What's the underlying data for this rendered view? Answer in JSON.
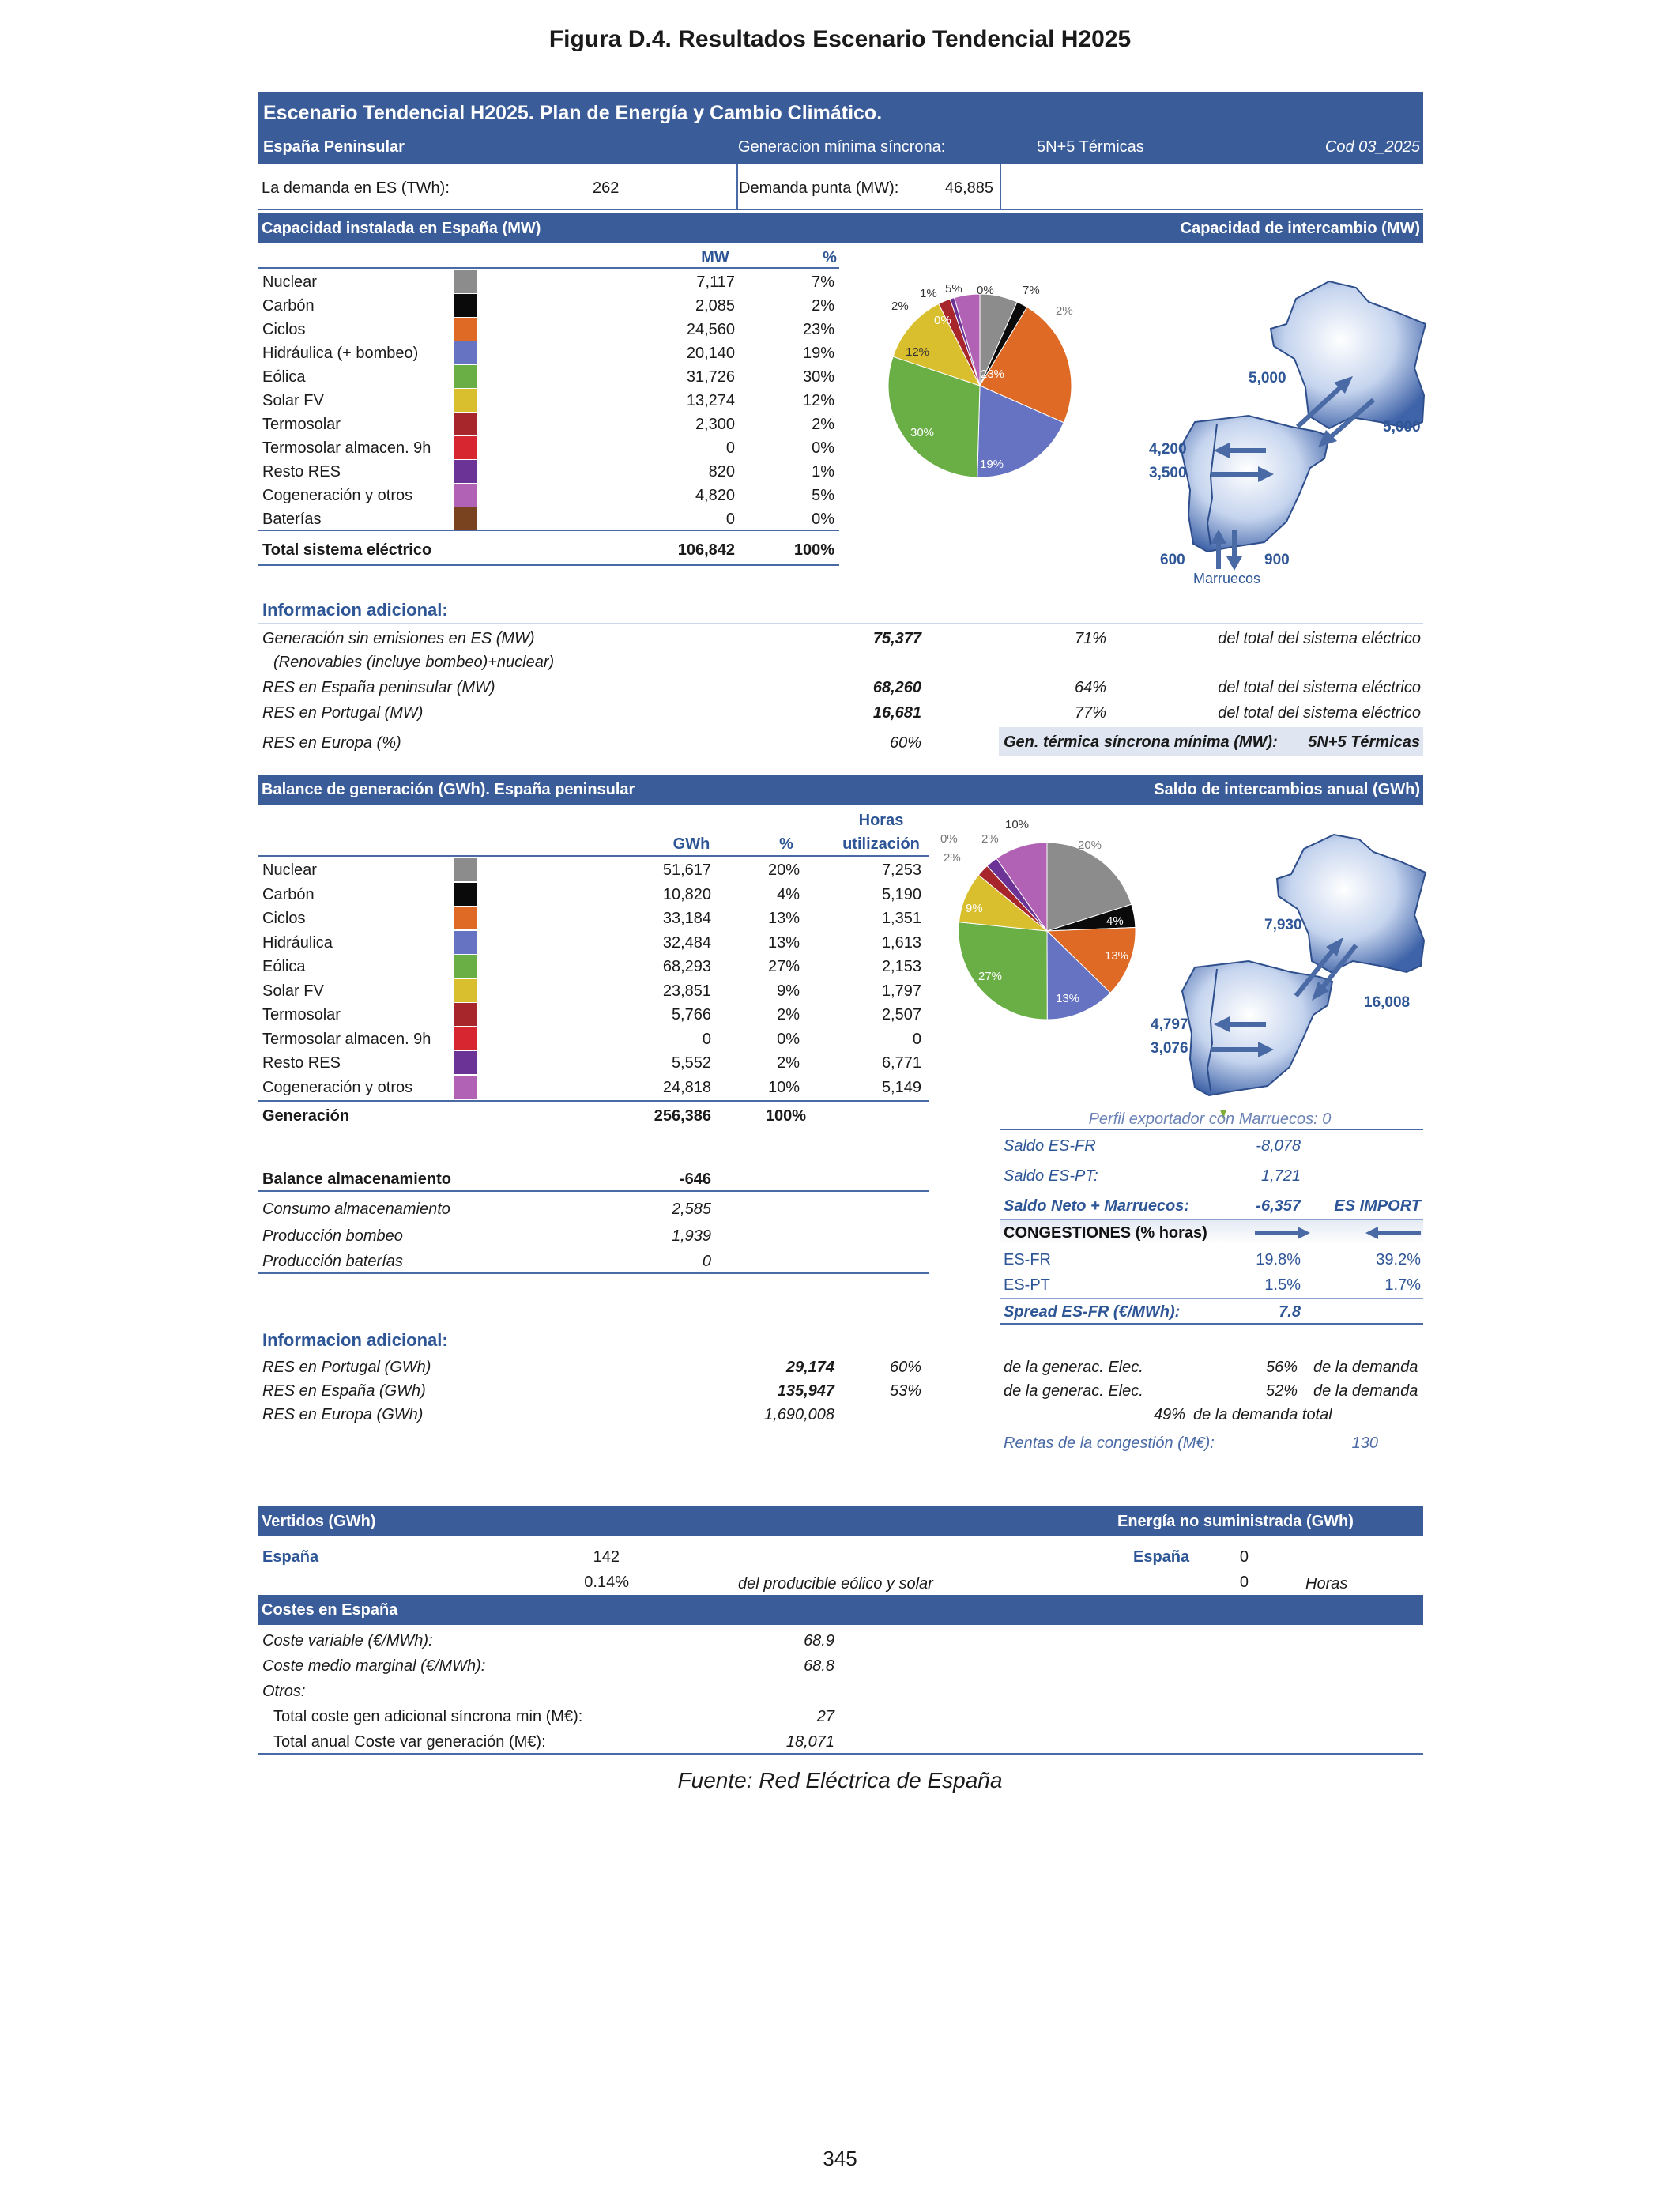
{
  "figure_title": "Figura D.4. Resultados Escenario Tendencial H2025",
  "header": {
    "title": "Escenario Tendencial H2025. Plan de Energía y Cambio Climático.",
    "region": "España Peninsular",
    "gen_min_label": "Generacion mínima síncrona:",
    "gen_min_value": "5N+5 Térmicas",
    "code": "Cod 03_2025",
    "demand_label": "La demanda en ES (TWh):",
    "demand_value": "262",
    "peak_label": "Demanda punta (MW):",
    "peak_value": "46,885"
  },
  "capacity": {
    "title": "Capacidad instalada en España (MW)",
    "exchange_title": "Capacidad de intercambio (MW)",
    "col_mw": "MW",
    "col_pct": "%",
    "rows": [
      {
        "name": "Nuclear",
        "mw": "7,117",
        "pct": "7%",
        "color": "#8c8c8c"
      },
      {
        "name": "Carbón",
        "mw": "2,085",
        "pct": "2%",
        "color": "#0a0a0a"
      },
      {
        "name": "Ciclos",
        "mw": "24,560",
        "pct": "23%",
        "color": "#de6a26"
      },
      {
        "name": "Hidráulica (+ bombeo)",
        "mw": "20,140",
        "pct": "19%",
        "color": "#6673c2"
      },
      {
        "name": "Eólica",
        "mw": "31,726",
        "pct": "30%",
        "color": "#6aaf46"
      },
      {
        "name": "Solar FV",
        "mw": "13,274",
        "pct": "12%",
        "color": "#d9bf2e"
      },
      {
        "name": "Termosolar",
        "mw": "2,300",
        "pct": "2%",
        "color": "#a7262b"
      },
      {
        "name": "Termosolar almacen. 9h",
        "mw": "0",
        "pct": "0%",
        "color": "#d7262f"
      },
      {
        "name": "Resto RES",
        "mw": "820",
        "pct": "1%",
        "color": "#6b3395"
      },
      {
        "name": "Cogeneración y otros",
        "mw": "4,820",
        "pct": "5%",
        "color": "#b262b5"
      },
      {
        "name": "Baterías",
        "mw": "0",
        "pct": "0%",
        "color": "#7a4320"
      }
    ],
    "total_label": "Total sistema eléctrico",
    "total_mw": "106,842",
    "total_pct": "100%",
    "pie_labels": [
      "7%",
      "2%",
      "23%",
      "19%",
      "30%",
      "12%",
      "2%",
      "0%",
      "1%",
      "5%",
      "0%"
    ],
    "exchange": {
      "fr_left": "5,000",
      "fr_right": "5,000",
      "pt_top": "4,200",
      "pt_bottom": "3,500",
      "ma_left": "600",
      "ma_right": "900",
      "ma_label": "Marruecos"
    }
  },
  "info1": {
    "title": "Informacion adicional:",
    "rows": [
      {
        "label": "Generación sin emisiones en ES (MW)",
        "value": "75,377",
        "pct": "71%",
        "note": "del total del sistema eléctrico"
      },
      {
        "label": "(Renovables (incluye bombeo)+nuclear)",
        "value": "",
        "pct": "",
        "note": ""
      },
      {
        "label": "RES en España peninsular (MW)",
        "value": "68,260",
        "pct": "64%",
        "note": "del total del sistema eléctrico"
      },
      {
        "label": "RES en Portugal (MW)",
        "value": "16,681",
        "pct": "77%",
        "note": "del total del sistema eléctrico"
      },
      {
        "label": "RES en Europa (%)",
        "value": "",
        "pct": "60%",
        "note": ""
      }
    ],
    "gen_term_label": "Gen. térmica síncrona mínima (MW):",
    "gen_term_value": "5N+5 Térmicas"
  },
  "balance": {
    "title": "Balance de generación (GWh). España peninsular",
    "exchange_title": "Saldo de intercambios anual  (GWh)",
    "col_gwh": "GWh",
    "col_pct": "%",
    "col_hours_1": "Horas",
    "col_hours_2": "utilización",
    "rows": [
      {
        "name": "Nuclear",
        "gwh": "51,617",
        "pct": "20%",
        "hours": "7,253",
        "color": "#8c8c8c"
      },
      {
        "name": "Carbón",
        "gwh": "10,820",
        "pct": "4%",
        "hours": "5,190",
        "color": "#0a0a0a"
      },
      {
        "name": "Ciclos",
        "gwh": "33,184",
        "pct": "13%",
        "hours": "1,351",
        "color": "#de6a26"
      },
      {
        "name": "Hidráulica",
        "gwh": "32,484",
        "pct": "13%",
        "hours": "1,613",
        "color": "#6673c2"
      },
      {
        "name": "Eólica",
        "gwh": "68,293",
        "pct": "27%",
        "hours": "2,153",
        "color": "#6aaf46"
      },
      {
        "name": "Solar FV",
        "gwh": "23,851",
        "pct": "9%",
        "hours": "1,797",
        "color": "#d9bf2e"
      },
      {
        "name": "Termosolar",
        "gwh": "5,766",
        "pct": "2%",
        "hours": "2,507",
        "color": "#a7262b"
      },
      {
        "name": "Termosolar almacen. 9h",
        "gwh": "0",
        "pct": "0%",
        "hours": "0",
        "color": "#d7262f"
      },
      {
        "name": "Resto RES",
        "gwh": "5,552",
        "pct": "2%",
        "hours": "6,771",
        "color": "#6b3395"
      },
      {
        "name": "Cogeneración y otros",
        "gwh": "24,818",
        "pct": "10%",
        "hours": "5,149",
        "color": "#b262b5"
      }
    ],
    "gen_label": "Generación",
    "gen_gwh": "256,386",
    "gen_pct": "100%",
    "pie_labels": [
      "20%",
      "4%",
      "13%",
      "13%",
      "27%",
      "9%",
      "2%",
      "0%",
      "2%",
      "10%"
    ],
    "exchange": {
      "fr_left": "7,930",
      "fr_right": "16,008",
      "pt_top": "4,797",
      "pt_bottom": "3,076"
    },
    "morocco_profile": "Perfil exportador con Marruecos:  0",
    "saldo_fr_label": "Saldo ES-FR",
    "saldo_fr_value": "-8,078",
    "saldo_pt_label": "Saldo ES-PT:",
    "saldo_pt_value": "1,721",
    "saldo_neto_label": "Saldo Neto + Marruecos:",
    "saldo_neto_value": "-6,357",
    "saldo_neto_note": "ES IMPORT",
    "cong_label": "CONGESTIONES (% horas)",
    "cong_rows": [
      {
        "name": "ES-FR",
        "a": "19.8%",
        "b": "39.2%"
      },
      {
        "name": "ES-PT",
        "a": "1.5%",
        "b": "1.7%"
      }
    ],
    "spread_label": "Spread ES-FR (€/MWh):",
    "spread_value": "7.8",
    "storage_label": "Balance almacenamiento",
    "storage_value": "-646",
    "storage_rows": [
      {
        "label": "Consumo almacenamiento",
        "value": "2,585"
      },
      {
        "label": "Producción bombeo",
        "value": "1,939"
      },
      {
        "label": "Producción baterías",
        "value": "0"
      }
    ]
  },
  "info2": {
    "title": "Informacion adicional:",
    "rows": [
      {
        "label": "RES en Portugal (GWh)",
        "value": "29,174",
        "pct": "60%",
        "note1": "de la generac. Elec.",
        "pct2": "56%",
        "note2": "de la demanda"
      },
      {
        "label": "RES en España (GWh)",
        "value": "135,947",
        "pct": "53%",
        "note1": "de la generac. Elec.",
        "pct2": "52%",
        "note2": "de la demanda"
      },
      {
        "label": "RES en Europa (GWh)",
        "value": "1,690,008",
        "pct": "",
        "note1": "",
        "pct2": "49%",
        "note2": "de la demanda total"
      }
    ],
    "rentas_label": "Rentas de la congestión (M€):",
    "rentas_value": "130"
  },
  "vertidos": {
    "title": "Vertidos (GWh)",
    "ens_title": "Energía no suministrada (GWh)",
    "es_label": "España",
    "es_value": "142",
    "es_pct": "0.14%",
    "es_note": "del producible eólico y solar",
    "ens_label": "España",
    "ens_value": "0",
    "ens_hours": "0",
    "ens_hours_label": "Horas"
  },
  "costes": {
    "title": "Costes en España",
    "rows": [
      {
        "label": "Coste variable (€/MWh):",
        "value": "68.9"
      },
      {
        "label": "Coste medio marginal (€/MWh):",
        "value": "68.8"
      },
      {
        "label": "Otros:",
        "value": ""
      },
      {
        "label": "Total coste gen adicional síncrona min (M€):",
        "value": "27"
      },
      {
        "label": "Total anual Coste var generación (M€):",
        "value": "18,071"
      }
    ]
  },
  "source": "Fuente: Red Eléctrica de España",
  "page_number": "345"
}
